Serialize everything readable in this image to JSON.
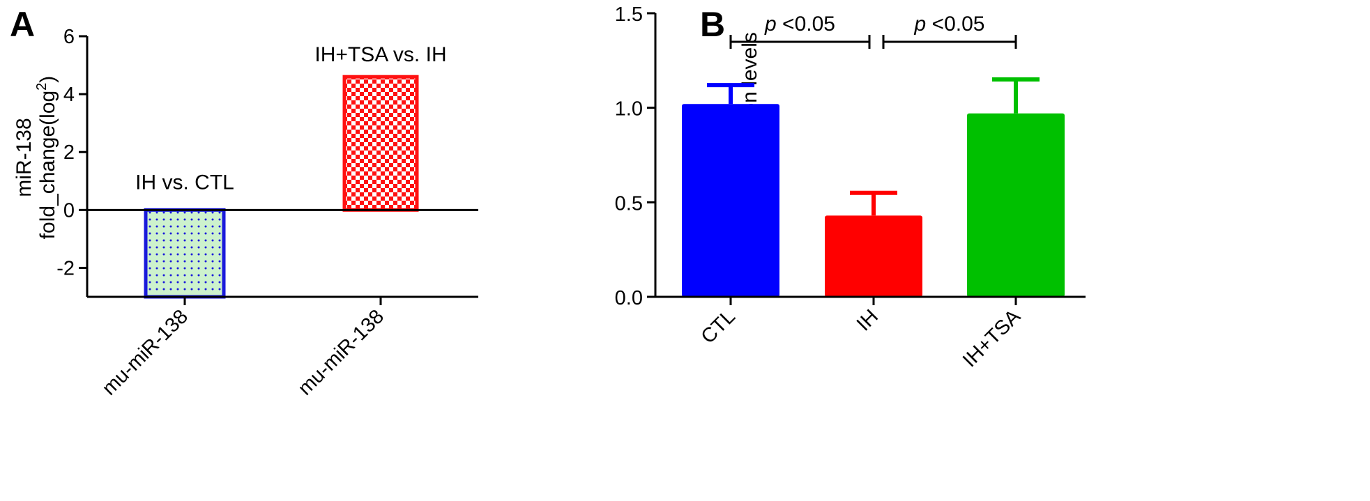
{
  "colors": {
    "panelA_neg_fill": "#cdf2cd",
    "panelA_neg_border": "#1a1adb",
    "panelA_neg_dot": "#1a1adb",
    "panelA_pos_checker": "#ff1111",
    "blue": "#0000ff",
    "red": "#ff0000",
    "green": "#00c000"
  },
  "chart_data": [
    {
      "panel": "A",
      "type": "bar",
      "categories": [
        "mu-miR-138",
        "mu-miR-138"
      ],
      "values": [
        -3.0,
        4.6
      ],
      "annotations": [
        "IH vs. CTL",
        "IH+TSA vs. IH"
      ],
      "ylabel_line1": "miR-138",
      "ylabel_line2_prefix": "fold_change(log",
      "ylabel_line2_sup": "2",
      "ylabel_line2_suffix": ")",
      "ylim": [
        -3,
        6
      ],
      "yticks": [
        6,
        4,
        2,
        0,
        -2
      ],
      "ytick_labels": [
        "6",
        "4",
        "2",
        "0",
        "-2"
      ]
    },
    {
      "panel": "B",
      "type": "bar",
      "categories": [
        "CTL",
        "IH",
        "IH+TSA"
      ],
      "values": [
        1.02,
        0.43,
        0.97
      ],
      "errors": [
        0.1,
        0.12,
        0.18
      ],
      "ylabel": "miR-138 expression levels",
      "ylim": [
        0,
        1.5
      ],
      "yticks": [
        1.5,
        1.0,
        0.5,
        0.0
      ],
      "ytick_labels": [
        "1.5",
        "1.0",
        "0.5",
        "0.0"
      ],
      "significance": [
        {
          "from": 0,
          "to": 1,
          "p_symbol": "p",
          "p_text": " <0.05"
        },
        {
          "from": 1,
          "to": 2,
          "p_symbol": "p",
          "p_text": " <0.05"
        }
      ]
    }
  ]
}
